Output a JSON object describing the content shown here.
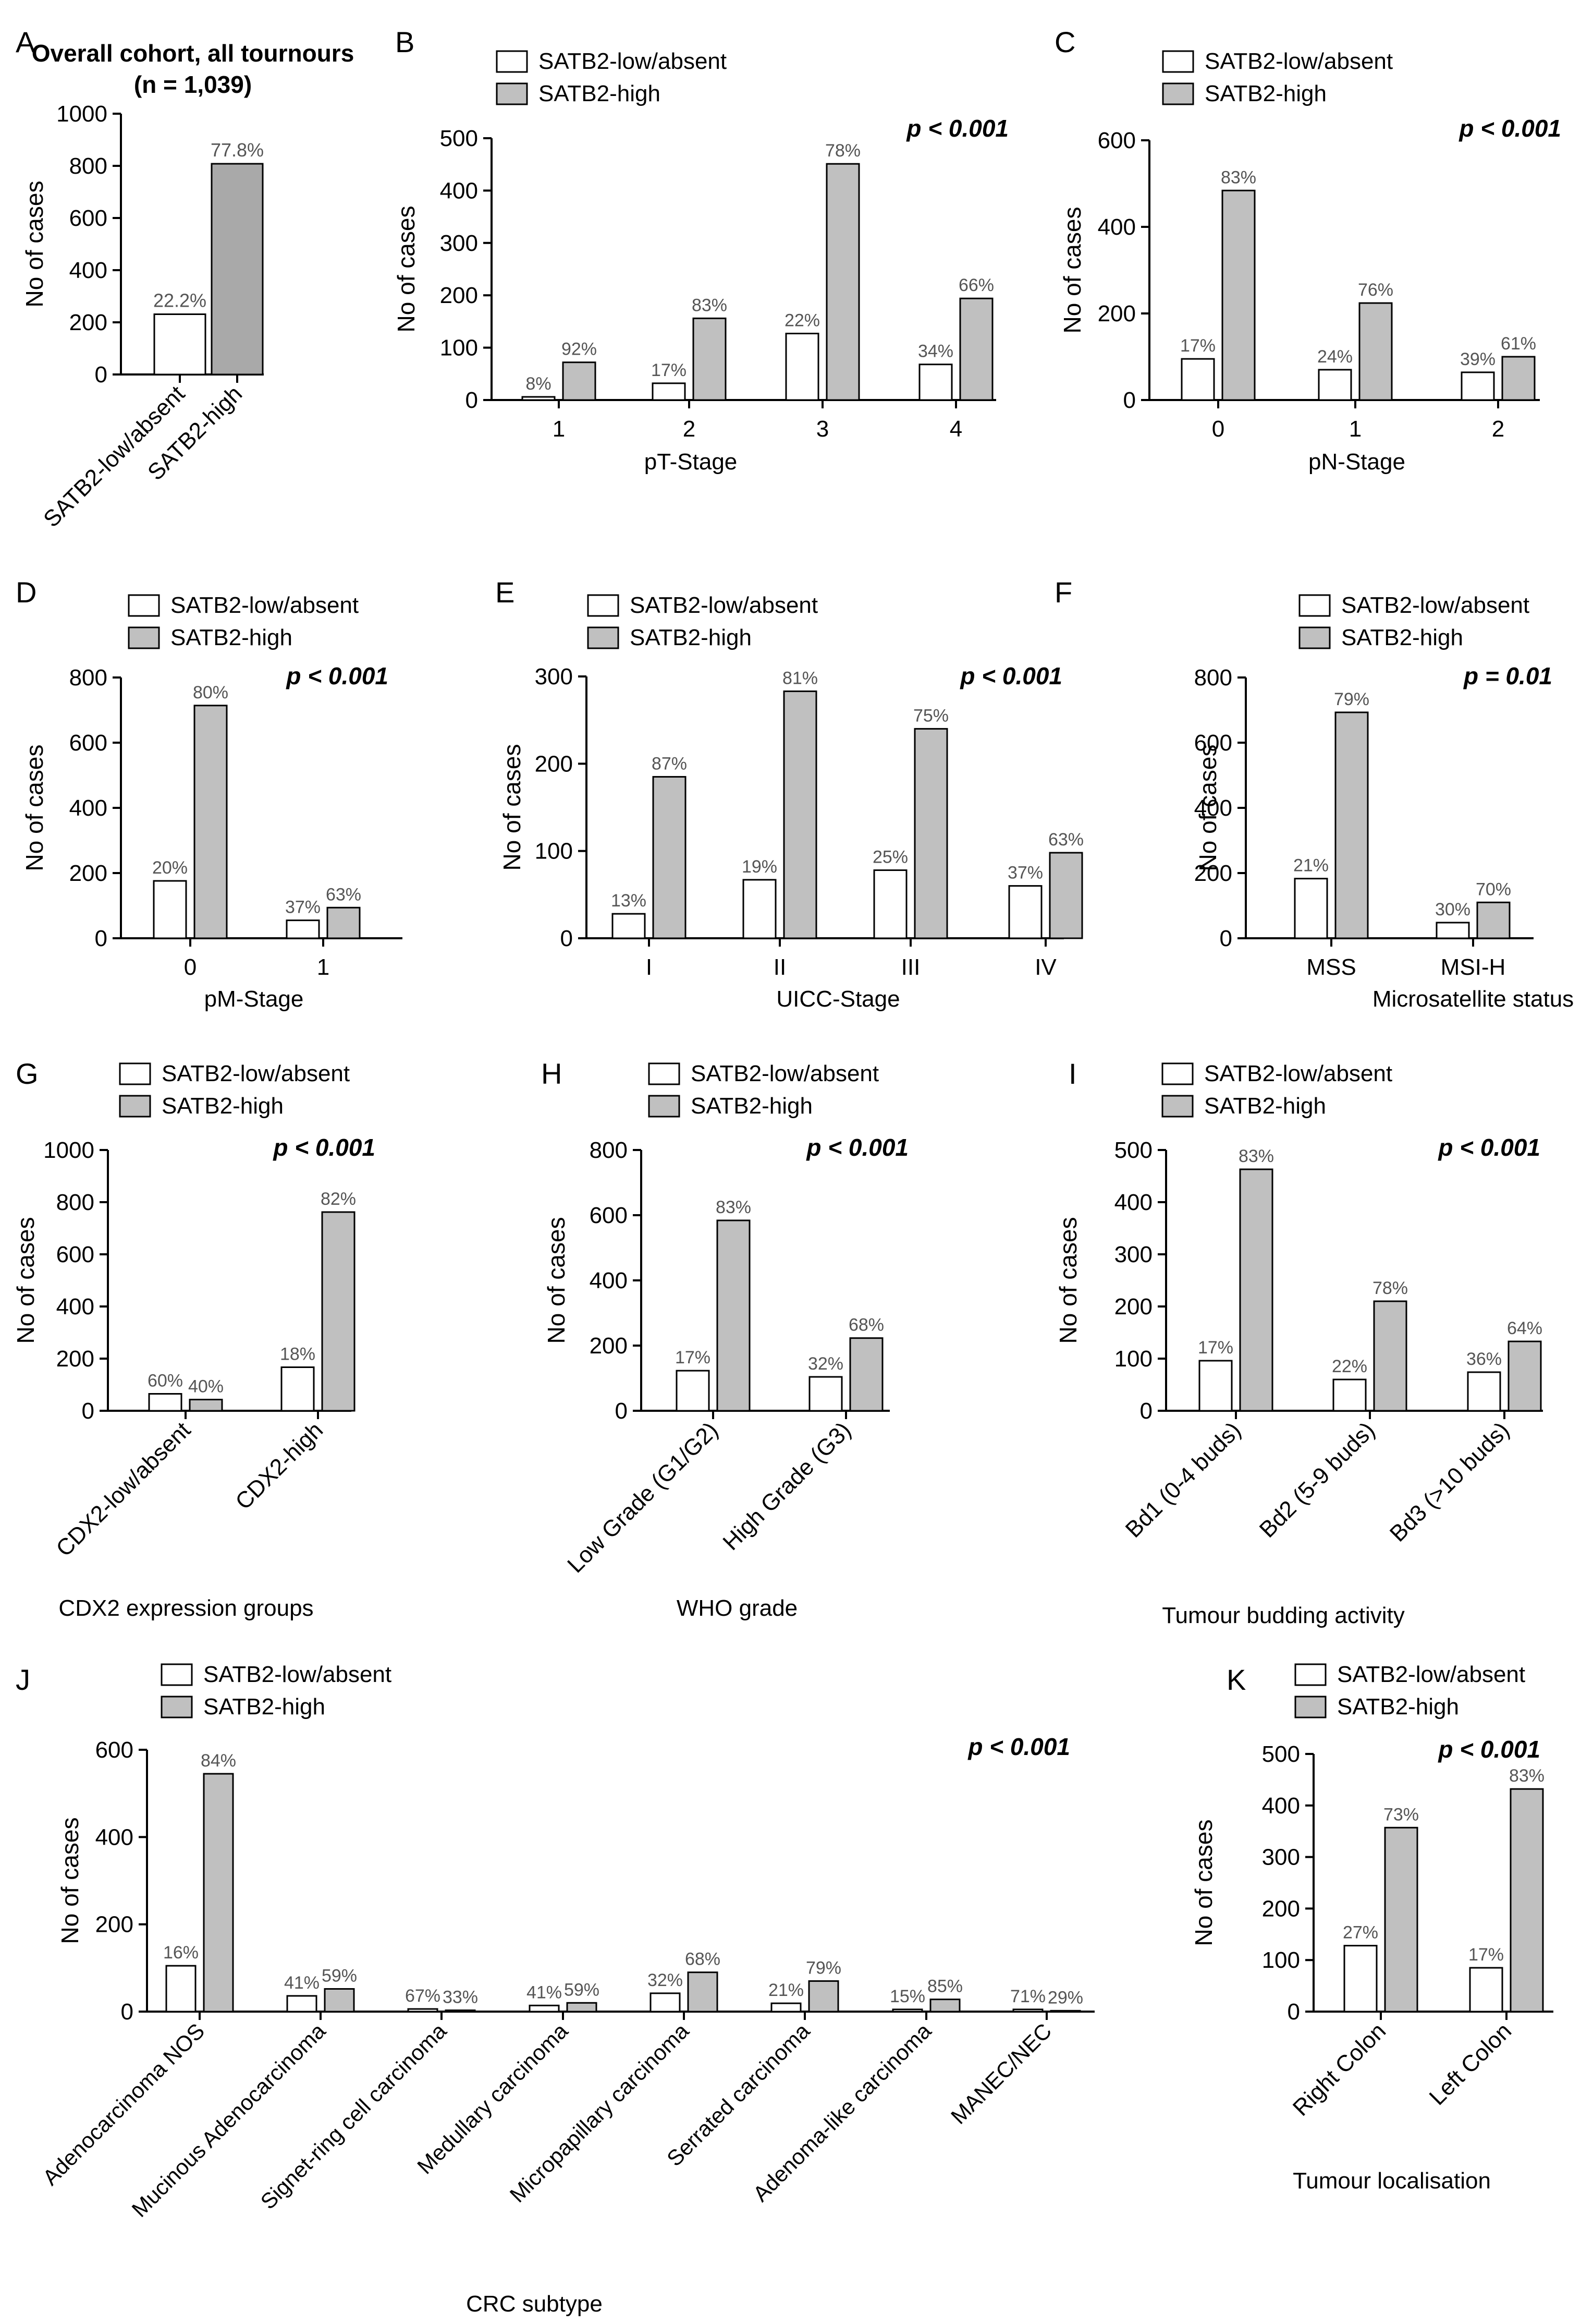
{
  "legend": {
    "low": "SATB2-low/absent",
    "high": "SATB2-high"
  },
  "colors": {
    "low": "#ffffff",
    "high": "#c0c0c0",
    "high_overall": "#a9a9a9",
    "axis": "#000000",
    "pct": "#555555"
  },
  "chart_data": [
    {
      "id": "A",
      "panel": "A",
      "type": "bar",
      "title": "Overall cohort, all tournours",
      "subtitle": "(n = 1,039)",
      "ylabel": "No of cases",
      "xlabel": "",
      "ylim": [
        0,
        1000
      ],
      "yticks": [
        0,
        200,
        400,
        600,
        800,
        1000
      ],
      "categories": [
        "SATB2-low/absent",
        "SATB2-high"
      ],
      "values": [
        231,
        808
      ],
      "labels": [
        "22.2%",
        "77.8%"
      ],
      "legend": false,
      "rotate": true
    },
    {
      "id": "B",
      "panel": "B",
      "type": "bar",
      "ylabel": "No of cases",
      "xlabel": "pT-Stage",
      "pvalue": "p < 0.001",
      "ylim": [
        0,
        500
      ],
      "yticks": [
        0,
        100,
        200,
        300,
        400,
        500
      ],
      "categories": [
        "1",
        "2",
        "3",
        "4"
      ],
      "series": [
        {
          "name": "SATB2-low/absent",
          "values": [
            6,
            32,
            127,
            68
          ],
          "labels": [
            "8%",
            "17%",
            "22%",
            "34%"
          ]
        },
        {
          "name": "SATB2-high",
          "values": [
            72,
            156,
            451,
            194
          ],
          "labels": [
            "92%",
            "83%",
            "78%",
            "66%"
          ]
        }
      ]
    },
    {
      "id": "C",
      "panel": "C",
      "type": "bar",
      "ylabel": "No of cases",
      "xlabel": "pN-Stage",
      "pvalue": "p < 0.001",
      "ylim": [
        0,
        600
      ],
      "yticks": [
        0,
        200,
        400,
        600
      ],
      "categories": [
        "0",
        "1",
        "2"
      ],
      "series": [
        {
          "name": "SATB2-low/absent",
          "values": [
            95,
            70,
            64
          ],
          "labels": [
            "17%",
            "24%",
            "39%"
          ]
        },
        {
          "name": "SATB2-high",
          "values": [
            484,
            224,
            100
          ],
          "labels": [
            "83%",
            "76%",
            "61%"
          ]
        }
      ]
    },
    {
      "id": "D",
      "panel": "D",
      "type": "bar",
      "ylabel": "No of cases",
      "xlabel": "pM-Stage",
      "pvalue": "p < 0.001",
      "ylim": [
        0,
        800
      ],
      "yticks": [
        0,
        200,
        400,
        600,
        800
      ],
      "categories": [
        "0",
        "1"
      ],
      "series": [
        {
          "name": "SATB2-low/absent",
          "values": [
            176,
            55
          ],
          "labels": [
            "20%",
            "37%"
          ]
        },
        {
          "name": "SATB2-high",
          "values": [
            714,
            94
          ],
          "labels": [
            "80%",
            "63%"
          ]
        }
      ]
    },
    {
      "id": "E",
      "panel": "E",
      "type": "bar",
      "ylabel": "No of cases",
      "xlabel": "UICC-Stage",
      "pvalue": "p < 0.001",
      "ylim": [
        0,
        300
      ],
      "yticks": [
        0,
        100,
        200,
        300
      ],
      "categories": [
        "I",
        "II",
        "III",
        "IV"
      ],
      "series": [
        {
          "name": "SATB2-low/absent",
          "values": [
            28,
            67,
            78,
            60
          ],
          "labels": [
            "13%",
            "19%",
            "25%",
            "37%"
          ]
        },
        {
          "name": "SATB2-high",
          "values": [
            185,
            283,
            240,
            98
          ],
          "labels": [
            "87%",
            "81%",
            "75%",
            "63%"
          ]
        }
      ]
    },
    {
      "id": "F",
      "panel": "F",
      "type": "bar",
      "ylabel": "No of cases",
      "xlabel": "Microsatellite status",
      "pvalue": "p = 0.01",
      "ylim": [
        0,
        800
      ],
      "yticks": [
        0,
        200,
        400,
        600,
        800
      ],
      "categories": [
        "MSS",
        "MSI-H"
      ],
      "series": [
        {
          "name": "SATB2-low/absent",
          "values": [
            183,
            48
          ],
          "labels": [
            "21%",
            "30%"
          ]
        },
        {
          "name": "SATB2-high",
          "values": [
            693,
            110
          ],
          "labels": [
            "79%",
            "70%"
          ]
        }
      ]
    },
    {
      "id": "G",
      "panel": "G",
      "type": "bar",
      "ylabel": "No of cases",
      "xlabel": "CDX2 expression groups",
      "pvalue": "p < 0.001",
      "ylim": [
        0,
        1000
      ],
      "yticks": [
        0,
        200,
        400,
        600,
        800,
        1000
      ],
      "categories": [
        "CDX2-low/absent",
        "CDX2-high"
      ],
      "rotate": true,
      "series": [
        {
          "name": "SATB2-low/absent",
          "values": [
            65,
            167
          ],
          "labels": [
            "60%",
            "18%"
          ]
        },
        {
          "name": "SATB2-high",
          "values": [
            43,
            762
          ],
          "labels": [
            "40%",
            "82%"
          ]
        }
      ]
    },
    {
      "id": "H",
      "panel": "H",
      "type": "bar",
      "ylabel": "No of cases",
      "xlabel": "WHO grade",
      "pvalue": "p < 0.001",
      "ylim": [
        0,
        800
      ],
      "yticks": [
        0,
        200,
        400,
        600,
        800
      ],
      "categories": [
        "Low Grade (G1/G2)",
        "High Grade (G3)"
      ],
      "rotate": true,
      "series": [
        {
          "name": "SATB2-low/absent",
          "values": [
            123,
            104
          ],
          "labels": [
            "17%",
            "32%"
          ]
        },
        {
          "name": "SATB2-high",
          "values": [
            584,
            223
          ],
          "labels": [
            "83%",
            "68%"
          ]
        }
      ]
    },
    {
      "id": "I",
      "panel": "I",
      "type": "bar",
      "ylabel": "No of cases",
      "xlabel": "Tumour budding activity",
      "pvalue": "p < 0.001",
      "ylim": [
        0,
        500
      ],
      "yticks": [
        0,
        100,
        200,
        300,
        400,
        500
      ],
      "categories": [
        "Bd1 (0-4 buds)",
        "Bd2 (5-9 buds)",
        "Bd3 (>10 buds)"
      ],
      "rotate": true,
      "series": [
        {
          "name": "SATB2-low/absent",
          "values": [
            96,
            60,
            74
          ],
          "labels": [
            "17%",
            "22%",
            "36%"
          ]
        },
        {
          "name": "SATB2-high",
          "values": [
            463,
            210,
            133
          ],
          "labels": [
            "83%",
            "78%",
            "64%"
          ]
        }
      ]
    },
    {
      "id": "J",
      "panel": "J",
      "type": "bar",
      "ylabel": "No of cases",
      "xlabel": "CRC subtype",
      "pvalue": "p < 0.001",
      "ylim": [
        0,
        600
      ],
      "yticks": [
        0,
        200,
        400,
        600
      ],
      "categories": [
        "Adenocarcinoma NOS",
        "Mucinous Adenocarcinoma",
        "Signet-ring cell carcinoma",
        "Medullary carcinoma",
        "Micropapillary carcinoma",
        "Serrated carcinoma",
        "Adenoma-like carcinoma",
        "MANEC/NEC"
      ],
      "rotate": true,
      "series": [
        {
          "name": "SATB2-low/absent",
          "values": [
            105,
            36,
            6,
            14,
            42,
            19,
            5,
            5
          ],
          "labels": [
            "16%",
            "41%",
            "67%",
            "41%",
            "32%",
            "21%",
            "15%",
            "71%"
          ]
        },
        {
          "name": "SATB2-high",
          "values": [
            545,
            52,
            3,
            20,
            90,
            70,
            28,
            2
          ],
          "labels": [
            "84%",
            "59%",
            "33%",
            "59%",
            "68%",
            "79%",
            "85%",
            "29%"
          ]
        }
      ]
    },
    {
      "id": "K",
      "panel": "K",
      "type": "bar",
      "ylabel": "No of cases",
      "xlabel": "Tumour localisation",
      "pvalue": "p < 0.001",
      "ylim": [
        0,
        500
      ],
      "yticks": [
        0,
        100,
        200,
        300,
        400,
        500
      ],
      "categories": [
        "Right Colon",
        "Left Colon"
      ],
      "rotate": true,
      "series": [
        {
          "name": "SATB2-low/absent",
          "values": [
            128,
            85
          ],
          "labels": [
            "27%",
            "17%"
          ]
        },
        {
          "name": "SATB2-high",
          "values": [
            357,
            432
          ],
          "labels": [
            "73%",
            "83%"
          ]
        }
      ]
    }
  ]
}
